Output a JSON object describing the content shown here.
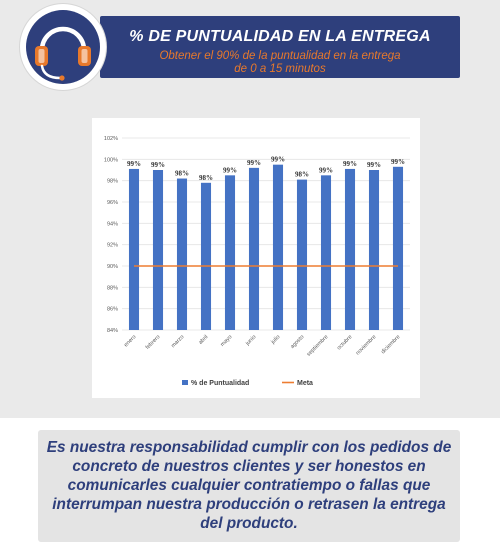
{
  "header": {
    "title": "% DE PUNTUALIDAD EN LA ENTREGA",
    "subtitle": "Obtener el 90% de la puntualidad en la entrega\nde 0 a 15 minutos"
  },
  "logo": {
    "icon": "headset-icon"
  },
  "chart_data": {
    "type": "bar",
    "categories": [
      "enero",
      "febrero",
      "marzo",
      "abril",
      "mayo",
      "junio",
      "julio",
      "agosto",
      "septiembre",
      "octubre",
      "noviembre",
      "diciembre"
    ],
    "series": [
      {
        "name": "% de  Puntualidad",
        "values": [
          99.1,
          99.0,
          98.2,
          97.8,
          98.5,
          99.2,
          99.5,
          98.1,
          98.5,
          99.1,
          99.0,
          99.3
        ],
        "color": "#4472c4"
      },
      {
        "name": "Meta",
        "values": [
          90,
          90,
          90,
          90,
          90,
          90,
          90,
          90,
          90,
          90,
          90,
          90
        ],
        "color": "#ed7d31"
      }
    ],
    "data_labels": [
      "99%",
      "99%",
      "98%",
      "98%",
      "99%",
      "99%",
      "99%",
      "98%",
      "99%",
      "99%",
      "99%",
      "99%"
    ],
    "y_ticks": [
      "84%",
      "86%",
      "88%",
      "90%",
      "92%",
      "94%",
      "96%",
      "98%",
      "100%",
      "102%"
    ],
    "ylim": [
      84,
      102
    ],
    "grid": true,
    "legend": "bottom",
    "title": "",
    "xlabel": "",
    "ylabel": ""
  },
  "footer": {
    "text": "Es nuestra responsabilidad cumplir con los pedidos de concreto de nuestros clientes y ser honestos en comunicarles cualquier contratiempo o fallas que interrumpan nuestra producción o retrasen la entrega del producto."
  }
}
